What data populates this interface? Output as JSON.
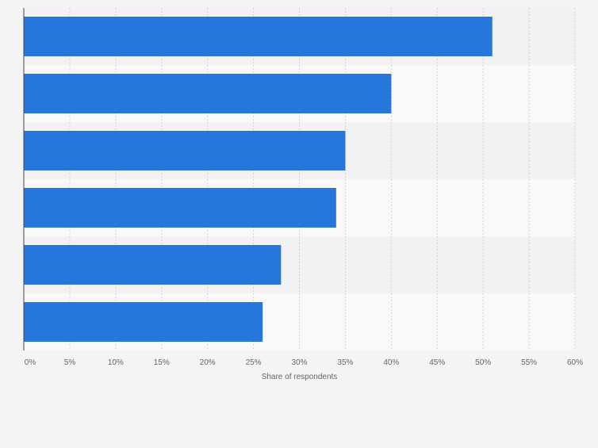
{
  "chart_data": {
    "type": "bar",
    "orientation": "horizontal",
    "categories": [
      "",
      "",
      "",
      "",
      "",
      ""
    ],
    "values": [
      51,
      40,
      35,
      34,
      28,
      26
    ],
    "title": "",
    "xlabel": "Share of respondents",
    "ylabel": "",
    "xlim": [
      0,
      60
    ],
    "x_ticks": [
      0,
      5,
      10,
      15,
      20,
      25,
      30,
      35,
      40,
      45,
      50,
      55,
      60
    ],
    "tick_labels": [
      "0%",
      "5%",
      "10%",
      "15%",
      "20%",
      "25%",
      "30%",
      "35%",
      "40%",
      "45%",
      "50%",
      "55%",
      "60%"
    ],
    "grid": true,
    "legend": "none",
    "colors": {
      "bar": "#2776db",
      "band_dark": "#f2f2f2",
      "band_light": "#f9f9f9",
      "grid": "#d4d4d4",
      "axis": "#444444",
      "text": "#666666"
    }
  }
}
